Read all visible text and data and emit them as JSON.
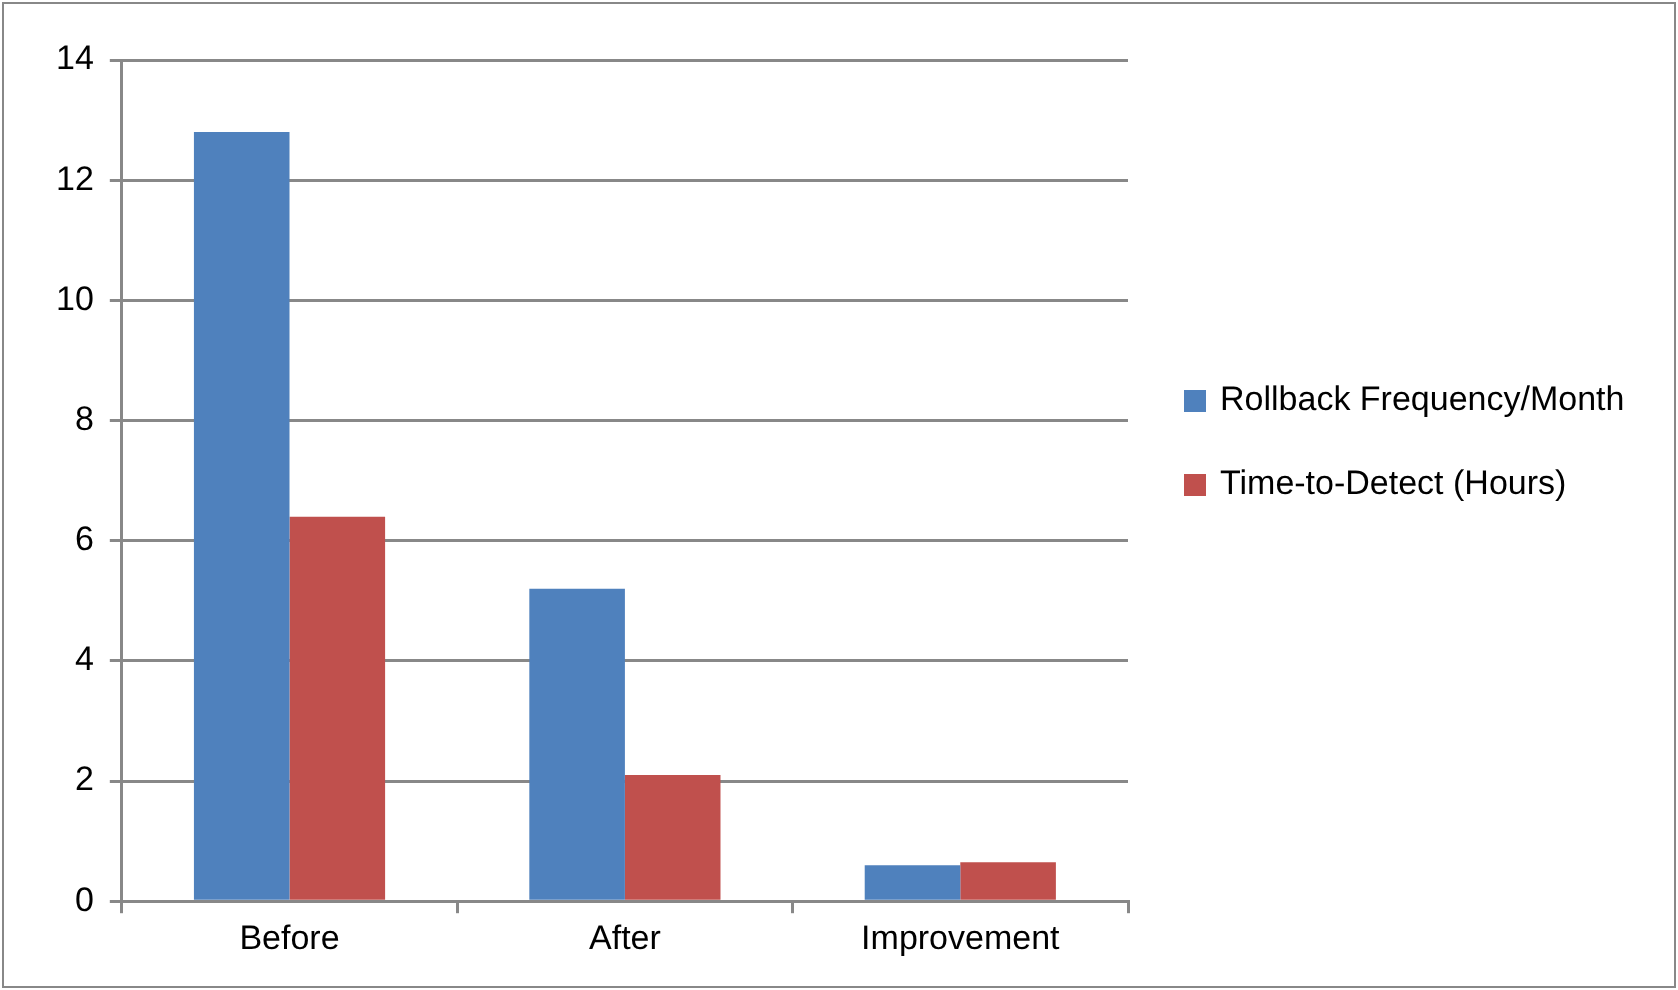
{
  "chart_data": {
    "type": "bar",
    "categories": [
      "Before",
      "After",
      "Improvement"
    ],
    "series": [
      {
        "name": "Rollback Frequency/Month",
        "color": "#4f81bd",
        "values": [
          12.8,
          5.2,
          0.6
        ]
      },
      {
        "name": "Time-to-Detect (Hours)",
        "color": "#c0504d",
        "values": [
          6.4,
          2.1,
          0.65
        ]
      }
    ],
    "ylim": [
      0,
      14
    ],
    "yticks": [
      0,
      2,
      4,
      6,
      8,
      10,
      12,
      14
    ],
    "grid": "y",
    "legend": "right"
  }
}
